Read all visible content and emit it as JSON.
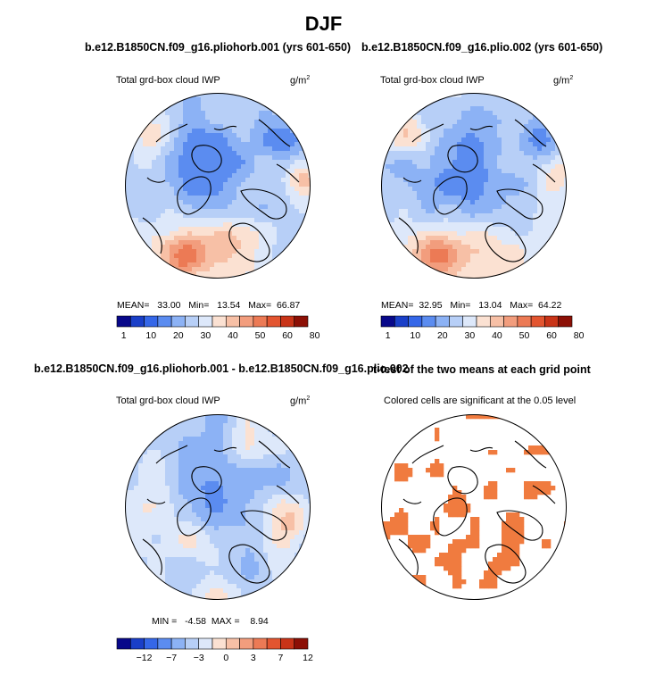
{
  "figure": {
    "title": "DJF"
  },
  "chart_data": [
    {
      "type": "heatmap",
      "projection": "north-polar-stereographic",
      "title": "b.e12.B1850CN.f09_g16.pliohorb.001 (yrs 601-650)",
      "subtitle": "Total grd-box cloud IWP",
      "units_base": "g/m",
      "units_sup": "2",
      "stats": {
        "mean_label": "MEAN=",
        "mean": "33.00",
        "min_label": "Min=",
        "min": "13.54",
        "max_label": "Max=",
        "max": "66.87"
      },
      "colorbar": {
        "levels": [
          "1",
          "10",
          "20",
          "30",
          "40",
          "50",
          "60",
          "80"
        ],
        "colors": [
          "#08088a",
          "#1a3fc8",
          "#3567e8",
          "#5b8cf0",
          "#8cb2f5",
          "#b7cff7",
          "#dde8fa",
          "#fbe1d2",
          "#f7c0a6",
          "#f29d7d",
          "#ec7a55",
          "#e35530",
          "#c93418",
          "#8c1006"
        ]
      }
    },
    {
      "type": "heatmap",
      "projection": "north-polar-stereographic",
      "title": "b.e12.B1850CN.f09_g16.plio.002 (yrs 601-650)",
      "subtitle": "Total grd-box cloud IWP",
      "units_base": "g/m",
      "units_sup": "2",
      "stats": {
        "mean_label": "MEAN=",
        "mean": "32.95",
        "min_label": "Min=",
        "min": "13.04",
        "max_label": "Max=",
        "max": "64.22"
      },
      "colorbar": {
        "levels": [
          "1",
          "10",
          "20",
          "30",
          "40",
          "50",
          "60",
          "80"
        ],
        "colors": [
          "#08088a",
          "#1a3fc8",
          "#3567e8",
          "#5b8cf0",
          "#8cb2f5",
          "#b7cff7",
          "#dde8fa",
          "#fbe1d2",
          "#f7c0a6",
          "#f29d7d",
          "#ec7a55",
          "#e35530",
          "#c93418",
          "#8c1006"
        ]
      }
    },
    {
      "type": "heatmap",
      "projection": "north-polar-stereographic",
      "title": "b.e12.B1850CN.f09_g16.pliohorb.001 - b.e12.B1850CN.f09_g16.plio.002",
      "subtitle": "Total grd-box cloud IWP",
      "units_base": "g/m",
      "units_sup": "2",
      "stats": {
        "min_label": "MIN =",
        "min": "-4.58",
        "max_label": "MAX =",
        "max": "8.94"
      },
      "colorbar": {
        "levels": [
          "−12",
          "−7",
          "−3",
          "0",
          "3",
          "7",
          "12"
        ],
        "colors": [
          "#08088a",
          "#1a3fc8",
          "#3567e8",
          "#5b8cf0",
          "#8cb2f5",
          "#b7cff7",
          "#dde8fa",
          "#fbe1d2",
          "#f7c0a6",
          "#f29d7d",
          "#ec7a55",
          "#e35530",
          "#c93418",
          "#8c1006"
        ]
      }
    },
    {
      "type": "heatmap",
      "projection": "north-polar-stereographic",
      "title": "t-test of the two means at each grid point",
      "subtitle": "Colored cells are significant at the 0.05 level",
      "significance_color": "#f07b3f"
    }
  ]
}
